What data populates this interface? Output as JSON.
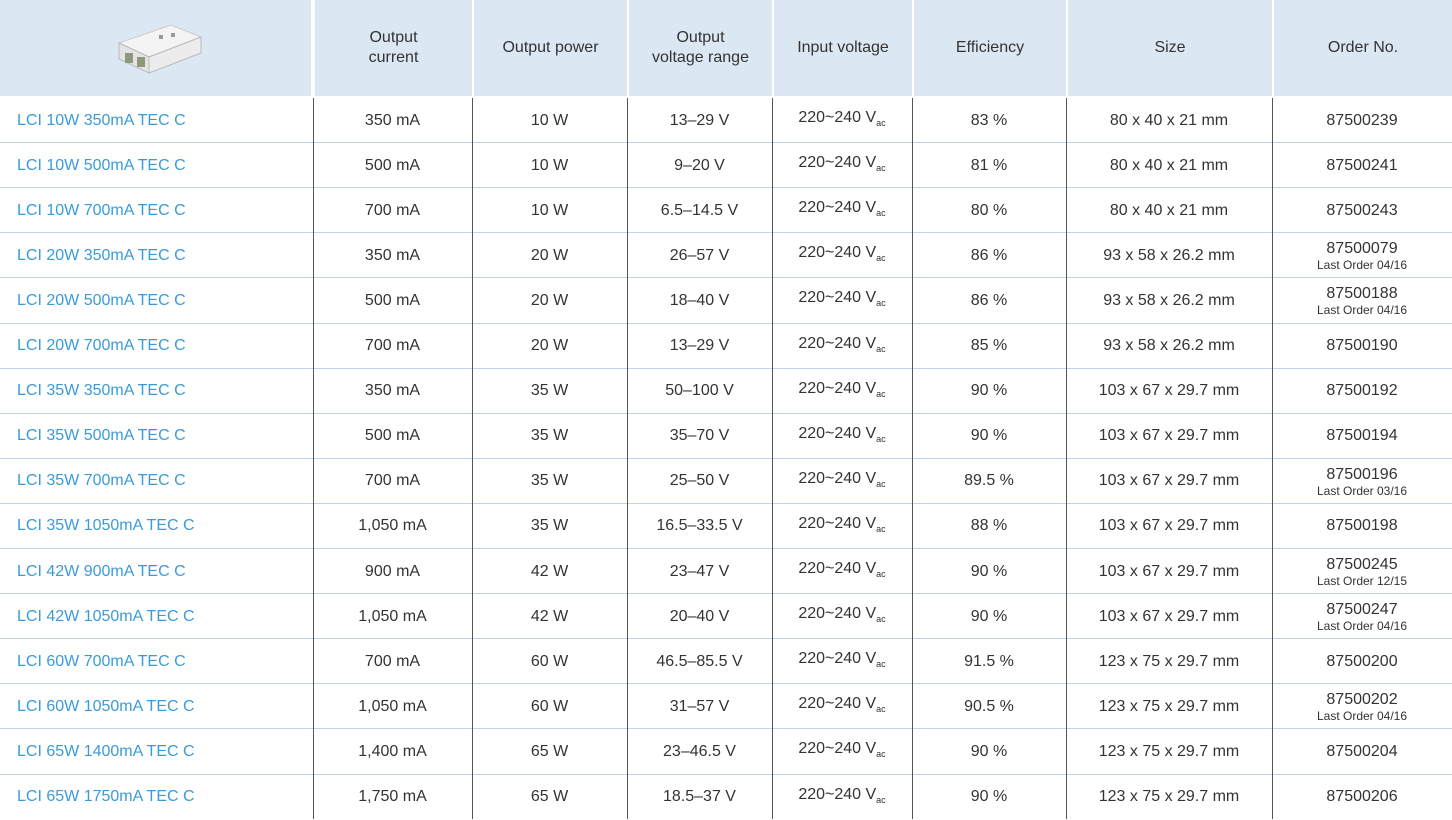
{
  "table": {
    "header": [
      [
        "Output",
        "current"
      ],
      [
        "Output power"
      ],
      [
        "Output",
        "voltage range"
      ],
      [
        "Input voltage"
      ],
      [
        "Efficiency"
      ],
      [
        "Size"
      ],
      [
        "Order No."
      ]
    ],
    "rows": [
      {
        "name": "LCI 10W 350mA TEC C",
        "current": "350 mA",
        "power": "10 W",
        "voltage": "13–29 V",
        "input": {
          "text": "220~240 V",
          "sub": "ac"
        },
        "efficiency": "83 %",
        "size": "80 x 40 x 21 mm",
        "order": {
          "number": "87500239"
        }
      },
      {
        "name": "LCI 10W 500mA TEC C",
        "current": "500 mA",
        "power": "10 W",
        "voltage": "9–20 V",
        "input": {
          "text": "220~240 V",
          "sub": "ac"
        },
        "efficiency": "81 %",
        "size": "80 x 40 x 21 mm",
        "order": {
          "number": "87500241"
        }
      },
      {
        "name": "LCI 10W 700mA TEC C",
        "current": "700 mA",
        "power": "10 W",
        "voltage": "6.5–14.5 V",
        "input": {
          "text": "220~240 V",
          "sub": "ac"
        },
        "efficiency": "80 %",
        "size": "80 x 40 x 21 mm",
        "order": {
          "number": "87500243"
        }
      },
      {
        "name": "LCI 20W 350mA TEC C",
        "current": "350 mA",
        "power": "20 W",
        "voltage": "26–57 V",
        "input": {
          "text": "220~240 V",
          "sub": "ac"
        },
        "efficiency": "86 %",
        "size": "93 x 58 x 26.2 mm",
        "order": {
          "number": "87500079",
          "note": "Last Order 04/16"
        }
      },
      {
        "name": "LCI 20W 500mA TEC C",
        "current": "500 mA",
        "power": "20 W",
        "voltage": "18–40 V",
        "input": {
          "text": "220~240 V",
          "sub": "ac"
        },
        "efficiency": "86 %",
        "size": "93 x 58 x 26.2 mm",
        "order": {
          "number": "87500188",
          "note": "Last Order 04/16"
        }
      },
      {
        "name": "LCI 20W 700mA TEC C",
        "current": "700 mA",
        "power": "20 W",
        "voltage": "13–29 V",
        "input": {
          "text": "220~240 V",
          "sub": "ac"
        },
        "efficiency": "85 %",
        "size": "93 x 58 x 26.2 mm",
        "order": {
          "number": "87500190"
        }
      },
      {
        "name": "LCI 35W 350mA TEC C",
        "current": "350 mA",
        "power": "35 W",
        "voltage": "50–100 V",
        "input": {
          "text": "220~240 V",
          "sub": "ac"
        },
        "efficiency": "90 %",
        "size": "103 x 67 x 29.7 mm",
        "order": {
          "number": "87500192"
        }
      },
      {
        "name": "LCI 35W 500mA TEC C",
        "current": "500 mA",
        "power": "35 W",
        "voltage": "35–70 V",
        "input": {
          "text": "220~240 V",
          "sub": "ac"
        },
        "efficiency": "90 %",
        "size": "103 x 67 x 29.7 mm",
        "order": {
          "number": "87500194"
        }
      },
      {
        "name": "LCI 35W 700mA TEC C",
        "current": "700 mA",
        "power": "35 W",
        "voltage": "25–50 V",
        "input": {
          "text": "220~240  V",
          "sub": "ac"
        },
        "efficiency": "89.5 %",
        "size": "103 x 67 x 29.7 mm",
        "order": {
          "number": "87500196",
          "note": "Last Order 03/16"
        }
      },
      {
        "name": "LCI 35W 1050mA TEC C",
        "current": "1,050 mA",
        "power": "35 W",
        "voltage": "16.5–33.5 V",
        "input": {
          "text": "220~240 V",
          "sub": "ac"
        },
        "efficiency": "88 %",
        "size": "103 x 67 x 29.7 mm",
        "order": {
          "number": "87500198"
        }
      },
      {
        "name": "LCI 42W 900mA TEC C",
        "current": "900 mA",
        "power": "42 W",
        "voltage": "23–47 V",
        "input": {
          "text": "220~240 V",
          "sub": "ac"
        },
        "efficiency": "90 %",
        "size": "103 x 67 x 29.7 mm",
        "order": {
          "number": "87500245",
          "note": "Last Order 12/15"
        }
      },
      {
        "name": "LCI 42W 1050mA TEC C",
        "current": "1,050 mA",
        "power": "42 W",
        "voltage": "20–40 V",
        "input": {
          "text": "220~240 V",
          "sub": "ac"
        },
        "efficiency": "90 %",
        "size": "103 x 67 x 29.7 mm",
        "order": {
          "number": "87500247",
          "note": "Last Order 04/16"
        }
      },
      {
        "name": "LCI 60W 700mA TEC C",
        "current": "700 mA",
        "power": "60 W",
        "voltage": "46.5–85.5 V",
        "input": {
          "text": "220~240 V",
          "sub": "ac"
        },
        "efficiency": "91.5 %",
        "size": "123 x 75 x 29.7 mm",
        "order": {
          "number": "87500200"
        }
      },
      {
        "name": "LCI 60W 1050mA TEC C",
        "current": "1,050 mA",
        "power": "60 W",
        "voltage": "31–57 V",
        "input": {
          "text": "220~240 V",
          "sub": "ac"
        },
        "efficiency": "90.5 %",
        "size": "123 x 75 x 29.7 mm",
        "order": {
          "number": "87500202",
          "note": "Last Order 04/16"
        }
      },
      {
        "name": "LCI 65W 1400mA TEC C",
        "current": "1,400 mA",
        "power": "65 W",
        "voltage": "23–46.5 V",
        "input": {
          "text": "220~240 V",
          "sub": "ac"
        },
        "efficiency": "90 %",
        "size": "123 x 75 x 29.7 mm",
        "order": {
          "number": "87500204"
        }
      },
      {
        "name": "LCI 65W 1750mA TEC C",
        "current": "1,750 mA",
        "power": "65 W",
        "voltage": "18.5–37 V",
        "input": {
          "text": "220~240 V",
          "sub": "ac"
        },
        "efficiency": "90 %",
        "size": "123 x 75 x 29.7 mm",
        "order": {
          "number": "87500206"
        }
      }
    ]
  }
}
